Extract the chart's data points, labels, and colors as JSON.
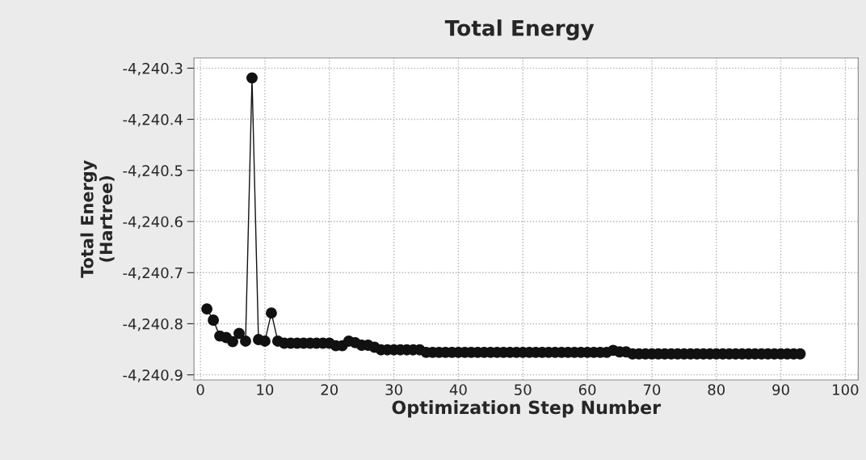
{
  "chart_data": {
    "type": "line",
    "title": "Total Energy",
    "xlabel": "Optimization Step Number",
    "ylabel": "Total Energy\n(Hartree)",
    "x": [
      1,
      2,
      3,
      4,
      5,
      6,
      7,
      8,
      9,
      10,
      11,
      12,
      13,
      14,
      15,
      16,
      17,
      18,
      19,
      20,
      21,
      22,
      23,
      24,
      25,
      26,
      27,
      28,
      29,
      30,
      31,
      32,
      33,
      34,
      35,
      36,
      37,
      38,
      39,
      40,
      41,
      42,
      43,
      44,
      45,
      46,
      47,
      48,
      49,
      50,
      51,
      52,
      53,
      54,
      55,
      56,
      57,
      58,
      59,
      60,
      61,
      62,
      63,
      64,
      65,
      66,
      67,
      68,
      69,
      70,
      71,
      72,
      73,
      74,
      75,
      76,
      77,
      78,
      79,
      80,
      81,
      82,
      83,
      84,
      85,
      86,
      87,
      88,
      89,
      90,
      91,
      92,
      93
    ],
    "series": [
      {
        "color": "#111111",
        "values": [
          -4240.771,
          -4240.793,
          -4240.824,
          -4240.827,
          -4240.835,
          -4240.819,
          -4240.834,
          -4240.319,
          -4240.831,
          -4240.834,
          -4240.779,
          -4240.834,
          -4240.838,
          -4240.838,
          -4240.838,
          -4240.838,
          -4240.838,
          -4240.838,
          -4240.838,
          -4240.838,
          -4240.843,
          -4240.843,
          -4240.834,
          -4240.837,
          -4240.842,
          -4240.842,
          -4240.846,
          -4240.851,
          -4240.851,
          -4240.851,
          -4240.851,
          -4240.851,
          -4240.851,
          -4240.851,
          -4240.856,
          -4240.856,
          -4240.856,
          -4240.856,
          -4240.856,
          -4240.856,
          -4240.856,
          -4240.856,
          -4240.856,
          -4240.856,
          -4240.856,
          -4240.856,
          -4240.856,
          -4240.856,
          -4240.856,
          -4240.856,
          -4240.856,
          -4240.856,
          -4240.856,
          -4240.856,
          -4240.856,
          -4240.856,
          -4240.856,
          -4240.856,
          -4240.856,
          -4240.856,
          -4240.856,
          -4240.856,
          -4240.856,
          -4240.852,
          -4240.855,
          -4240.855,
          -4240.859,
          -4240.859,
          -4240.859,
          -4240.859,
          -4240.859,
          -4240.859,
          -4240.859,
          -4240.859,
          -4240.859,
          -4240.859,
          -4240.859,
          -4240.859,
          -4240.859,
          -4240.859,
          -4240.859,
          -4240.859,
          -4240.859,
          -4240.859,
          -4240.859,
          -4240.859,
          -4240.859,
          -4240.859,
          -4240.859,
          -4240.859,
          -4240.859,
          -4240.859,
          -4240.859
        ]
      }
    ],
    "xlim": [
      -1,
      102
    ],
    "xticks": [
      0,
      10,
      20,
      30,
      40,
      50,
      60,
      70,
      80,
      90,
      100
    ],
    "ylim": [
      -4240.91,
      -4240.28
    ],
    "yticks": [
      {
        "value": -4240.9,
        "label": "-4,240.9"
      },
      {
        "value": -4240.8,
        "label": "-4,240.8"
      },
      {
        "value": -4240.7,
        "label": "-4,240.7"
      },
      {
        "value": -4240.6,
        "label": "-4,240.6"
      },
      {
        "value": -4240.5,
        "label": "-4,240.5"
      },
      {
        "value": -4240.4,
        "label": "-4,240.4"
      },
      {
        "value": -4240.3,
        "label": "-4,240.3"
      }
    ],
    "grid": true,
    "marker": "circle",
    "line_style": "solid",
    "legend": false
  }
}
